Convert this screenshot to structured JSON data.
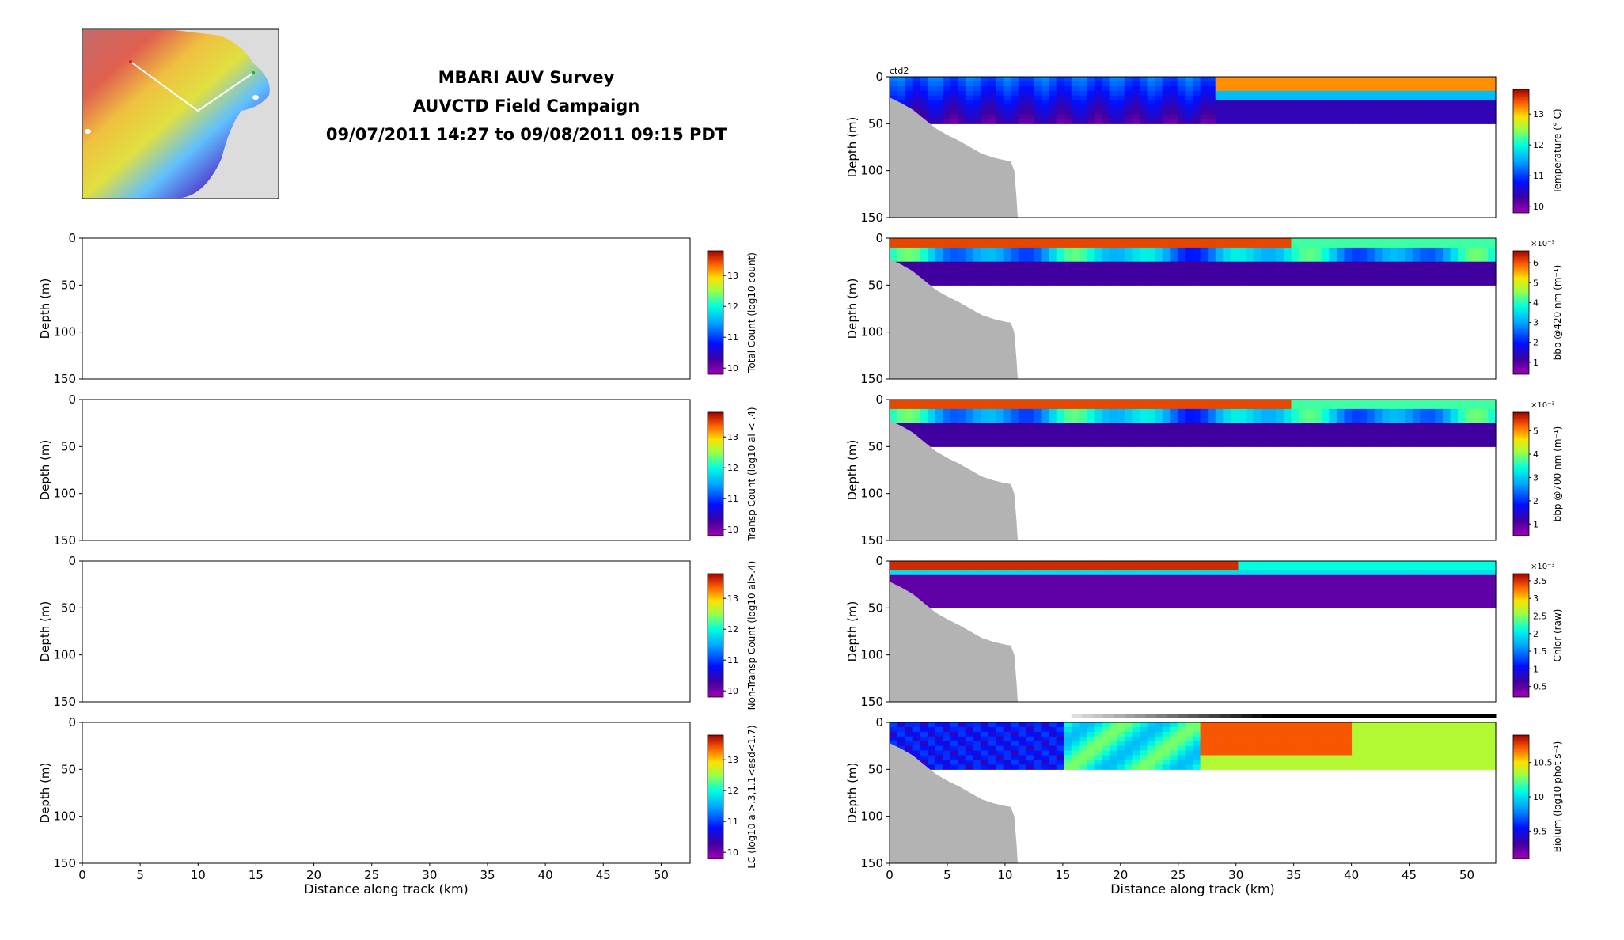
{
  "title": {
    "line1": "MBARI AUV Survey",
    "line2": "AUVCTD Field Campaign",
    "line3": "09/07/2011 14:27 to 09/08/2011 09:15 PDT"
  },
  "colors": {
    "land": "#b3b3b3",
    "map_ocean": "#dcdcdc",
    "track": "#ffffff"
  },
  "chart_data": [
    {
      "type": "heatmap",
      "panel": "left-1",
      "ylabel": "Depth (m)",
      "xlabel": "",
      "xlim": [
        0,
        52.5
      ],
      "ylim": [
        150,
        0
      ],
      "yticks": [
        0,
        50,
        100,
        150
      ],
      "xticks": [],
      "colorbar": {
        "label": "Total Count (log10 count)",
        "ticks": [
          "10",
          "11",
          "12",
          "13"
        ],
        "range": [
          9.8,
          13.8
        ]
      },
      "has_data": false
    },
    {
      "type": "heatmap",
      "panel": "left-2",
      "ylabel": "Depth (m)",
      "xlabel": "",
      "xlim": [
        0,
        52.5
      ],
      "ylim": [
        150,
        0
      ],
      "yticks": [
        0,
        50,
        100,
        150
      ],
      "xticks": [],
      "colorbar": {
        "label": "Transp Count (log10 ai < .4)",
        "ticks": [
          "10",
          "11",
          "12",
          "13"
        ],
        "range": [
          9.8,
          13.8
        ]
      },
      "has_data": false
    },
    {
      "type": "heatmap",
      "panel": "left-3",
      "ylabel": "Depth (m)",
      "xlabel": "",
      "xlim": [
        0,
        52.5
      ],
      "ylim": [
        150,
        0
      ],
      "yticks": [
        0,
        50,
        100,
        150
      ],
      "xticks": [],
      "colorbar": {
        "label": "Non-Transp Count (log10 ai>.4)",
        "ticks": [
          "10",
          "11",
          "12",
          "13"
        ],
        "range": [
          9.8,
          13.8
        ]
      },
      "has_data": false
    },
    {
      "type": "heatmap",
      "panel": "left-4",
      "ylabel": "Depth (m)",
      "xlabel": "Distance along track (km)",
      "xlim": [
        0,
        52.5
      ],
      "ylim": [
        150,
        0
      ],
      "yticks": [
        0,
        50,
        100,
        150
      ],
      "xticks": [
        "0",
        "5",
        "10",
        "15",
        "20",
        "25",
        "30",
        "35",
        "40",
        "45",
        "50"
      ],
      "colorbar": {
        "label": "LC (log10 ai>.3,1.1<esd<1.7)",
        "ticks": [
          "10",
          "11",
          "12",
          "13"
        ],
        "range": [
          9.8,
          13.8
        ]
      },
      "has_data": false
    },
    {
      "type": "heatmap",
      "panel": "right-1",
      "label": "ctd2",
      "ylabel": "Depth (m)",
      "xlabel": "",
      "xlim": [
        0,
        52.5
      ],
      "ylim": [
        150,
        0
      ],
      "yticks": [
        0,
        50,
        100,
        150
      ],
      "xticks": [],
      "colorbar": {
        "label": "Temperature (° C)",
        "ticks": [
          "10",
          "11",
          "12",
          "13"
        ],
        "range": [
          9.8,
          13.8
        ]
      },
      "pattern": "temp",
      "surface": 0.85,
      "deep": 0.15,
      "has_data": true
    },
    {
      "type": "heatmap",
      "panel": "right-2",
      "ylabel": "Depth (m)",
      "xlabel": "",
      "xlim": [
        0,
        52.5
      ],
      "ylim": [
        150,
        0
      ],
      "yticks": [
        0,
        50,
        100,
        150
      ],
      "xticks": [],
      "colorbar": {
        "label": "bbp @420 nm (m⁻¹)",
        "multiplier": "×10⁻³",
        "ticks": [
          "1",
          "2",
          "3",
          "4",
          "5",
          "6"
        ],
        "range": [
          0.4,
          6.6
        ]
      },
      "pattern": "bbp",
      "surface": 0.9,
      "deep": 0.12,
      "has_data": true
    },
    {
      "type": "heatmap",
      "panel": "right-3",
      "ylabel": "Depth (m)",
      "xlabel": "",
      "xlim": [
        0,
        52.5
      ],
      "ylim": [
        150,
        0
      ],
      "yticks": [
        0,
        50,
        100,
        150
      ],
      "xticks": [],
      "colorbar": {
        "label": "bbp @700 nm (m⁻¹)",
        "multiplier": "×10⁻³",
        "ticks": [
          "1",
          "2",
          "3",
          "4",
          "5"
        ],
        "range": [
          0.5,
          5.8
        ]
      },
      "pattern": "bbp",
      "surface": 0.9,
      "deep": 0.15,
      "has_data": true
    },
    {
      "type": "heatmap",
      "panel": "right-4",
      "ylabel": "Depth (m)",
      "xlabel": "",
      "xlim": [
        0,
        52.5
      ],
      "ylim": [
        150,
        0
      ],
      "yticks": [
        0,
        50,
        100,
        150
      ],
      "xticks": [],
      "colorbar": {
        "label": "Chlor (raw)",
        "multiplier": "×10⁻³",
        "ticks": [
          "0.5",
          "1",
          "1.5",
          "2",
          "2.5",
          "3",
          "3.5"
        ],
        "range": [
          0.2,
          3.7
        ]
      },
      "pattern": "chl",
      "surface": 0.95,
      "deep": 0.05,
      "has_data": true
    },
    {
      "type": "heatmap",
      "panel": "right-5",
      "ylabel": "Depth (m)",
      "xlabel": "Distance along track (km)",
      "xlim": [
        0,
        52.5
      ],
      "ylim": [
        150,
        0
      ],
      "yticks": [
        0,
        50,
        100,
        150
      ],
      "xticks": [
        "0",
        "5",
        "10",
        "15",
        "20",
        "25",
        "30",
        "35",
        "40",
        "45",
        "50"
      ],
      "colorbar": {
        "label": "Biolum (log10 phot s⁻¹)",
        "ticks": [
          "9.5",
          "10",
          "10.5"
        ],
        "range": [
          9.1,
          10.9
        ]
      },
      "pattern": "bio",
      "surface": 0.5,
      "deep": 0.4,
      "has_data": true
    }
  ]
}
